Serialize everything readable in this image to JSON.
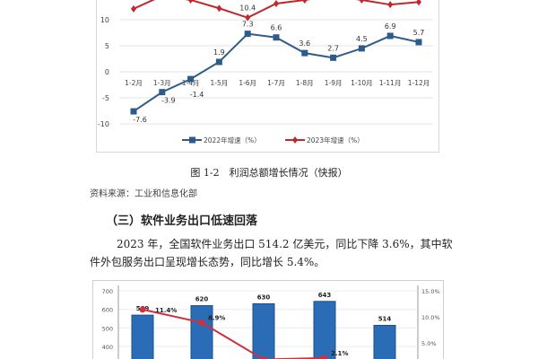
{
  "chart_data": [
    {
      "type": "line",
      "categories": [
        "1-2月",
        "1-3月",
        "1-4月",
        "1-5月",
        "1-6月",
        "1-7月",
        "1-8月",
        "1-9月",
        "1-10月",
        "1-11月",
        "1-12月"
      ],
      "series": [
        {
          "name": "2022年增速（%）",
          "color": "#2e5c8a",
          "marker": "square",
          "values": [
            -7.6,
            -3.9,
            -1.4,
            1.9,
            7.3,
            6.6,
            3.6,
            2.7,
            4.5,
            6.9,
            5.7
          ],
          "labels": [
            "-7.6",
            "-3.9",
            "-1.4",
            "1.9",
            "7.3",
            "6.6",
            "3.6",
            "2.7",
            "4.5",
            "6.9",
            "5.7"
          ]
        },
        {
          "name": "2023年增速（%）",
          "color": "#c0282d",
          "marker": "diamond",
          "values": [
            12.1,
            14.6,
            13.8,
            12.2,
            10.4,
            13.1,
            13.8,
            14.6,
            13.8,
            12.9,
            13.4
          ],
          "labels": [
            "",
            "",
            "",
            "",
            "10.4",
            "",
            "",
            "",
            "",
            "",
            ""
          ]
        }
      ],
      "yticks": [
        10,
        5,
        0,
        -5,
        -10
      ],
      "ylim": [
        -12,
        14
      ],
      "grid": true,
      "legend": "bottom"
    },
    {
      "type": "bar",
      "categories": [
        "",
        "",
        "",
        "",
        ""
      ],
      "bars": {
        "color": "#2a6cb5",
        "values": [
          569,
          620,
          630,
          643,
          514
        ],
        "labels": [
          "569",
          "620",
          "630",
          "643",
          "514"
        ]
      },
      "line": {
        "color": "#d0303a",
        "values": [
          11.4,
          8.9,
          1.8,
          2.1
        ],
        "labels": [
          "11.4%",
          "8.9%",
          "",
          "2.1%"
        ]
      },
      "yticks_left": [
        700,
        600,
        500,
        400
      ],
      "yticks_right": [
        "15.0%",
        "10.0%",
        "5.0%"
      ],
      "ylim_left": [
        300,
        700
      ],
      "ylim_right": [
        0,
        15
      ]
    }
  ],
  "document": {
    "caption": "图 1-2　利润总额增长情况（快报）",
    "source": "资料来源：工业和信息化部",
    "heading": "（三）软件业务出口低速回落",
    "paragraph": "2023 年，全国软件业务出口 514.2 亿美元，同比下降 3.6%，其中软件外包服务出口呈现增长态势，同比增长 5.4%。"
  }
}
